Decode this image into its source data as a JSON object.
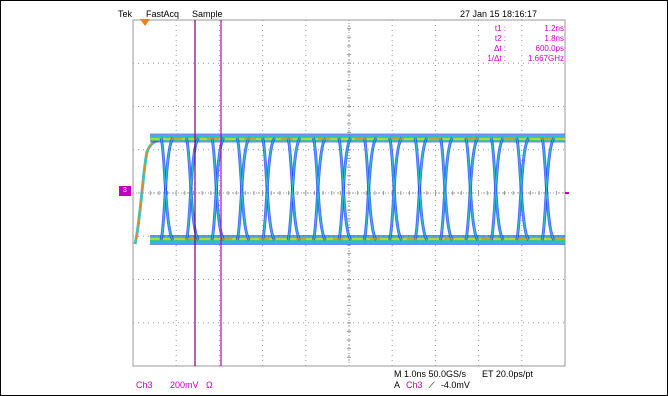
{
  "header": {
    "brand": "Tek",
    "acq_mode": "FastAcq",
    "sample_mode": "Sample",
    "datetime": "27 Jan 15 18:16:17"
  },
  "cursors": [
    {
      "label": "t1 :",
      "value": "1.2ns"
    },
    {
      "label": "t2 :",
      "value": "1.8ns"
    },
    {
      "label": "Δt :",
      "value": "600.0ps"
    },
    {
      "label": "1/Δt :",
      "value": "1.667GHz"
    }
  ],
  "channel": {
    "marker": "3",
    "name": "Ch3",
    "scale": "200mV",
    "coupling": "Ω"
  },
  "timebase": {
    "line": "M 1.0ns 50.0GS/s",
    "et": "ET 20.0ps/pt"
  },
  "trigger": {
    "prefix": "A",
    "source": "Ch3",
    "slope": "⟋",
    "level": "-4.0mV"
  },
  "colors": {
    "cursor_purple": "#c000c0",
    "text_purple": "#c000c0",
    "grid": "#9a9a9a",
    "trace_blue": "#1a3cff",
    "trace_cyan": "#1ec8c8",
    "trace_green": "#5ed23a",
    "trace_yellow": "#e6dc28",
    "trace_orange": "#f08020"
  }
}
